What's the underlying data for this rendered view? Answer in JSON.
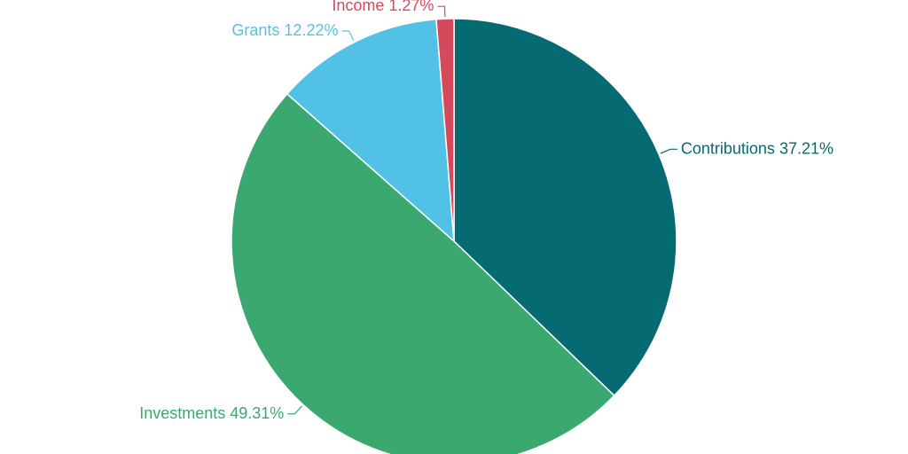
{
  "chart_data": {
    "type": "pie",
    "categories": [
      "Contributions",
      "Investments",
      "Grants",
      "Income"
    ],
    "values": [
      37.21,
      49.31,
      12.22,
      1.27
    ],
    "value_labels": [
      "37.21%",
      "49.31%",
      "12.22%",
      "1.27%"
    ],
    "colors": [
      "#066a73",
      "#3ba870",
      "#52c1e6",
      "#d44a5c"
    ]
  }
}
